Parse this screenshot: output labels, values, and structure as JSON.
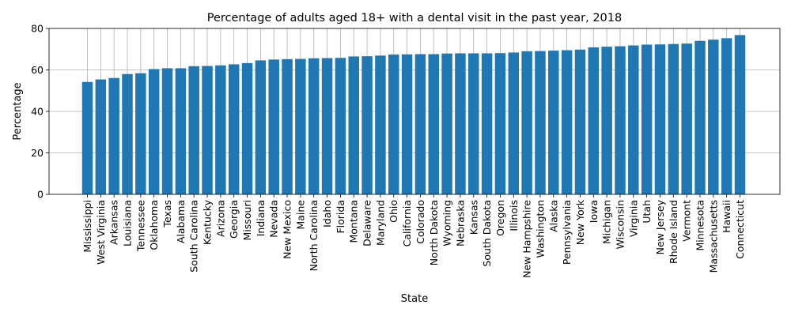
{
  "chart_data": {
    "type": "bar",
    "title": "Percentage of adults aged 18+ with a dental visit in the past year, 2018",
    "xlabel": "State",
    "ylabel": "Percentage",
    "ylim": [
      0,
      80
    ],
    "yticks": [
      0,
      20,
      40,
      60,
      80
    ],
    "grid": true,
    "bar_color": "#1f77b4",
    "categories": [
      "Mississippi",
      "West Virginia",
      "Arkansas",
      "Louisiana",
      "Tennessee",
      "Oklahoma",
      "Texas",
      "Alabama",
      "South Carolina",
      "Kentucky",
      "Arizona",
      "Georgia",
      "Missouri",
      "Indiana",
      "Nevada",
      "New Mexico",
      "Maine",
      "North Carolina",
      "Idaho",
      "Florida",
      "Montana",
      "Delaware",
      "Maryland",
      "Ohio",
      "California",
      "Colorado",
      "North Dakota",
      "Wyoming",
      "Nebraska",
      "Kansas",
      "South Dakota",
      "Oregon",
      "Illinois",
      "New Hampshire",
      "Washington",
      "Alaska",
      "Pennsylvania",
      "New York",
      "Iowa",
      "Michigan",
      "Wisconsin",
      "Virginia",
      "Utah",
      "New Jersey",
      "Rhode Island",
      "Vermont",
      "Minnesota",
      "Massachusetts",
      "Hawaii",
      "Connecticut"
    ],
    "values": [
      54.2,
      55.4,
      56.1,
      58.0,
      58.4,
      60.4,
      60.8,
      60.8,
      61.8,
      61.9,
      62.2,
      62.7,
      63.3,
      64.6,
      65.0,
      65.2,
      65.3,
      65.6,
      65.7,
      65.8,
      66.5,
      66.6,
      66.9,
      67.4,
      67.5,
      67.6,
      67.6,
      67.9,
      68.0,
      68.0,
      68.0,
      68.1,
      68.4,
      69.0,
      69.1,
      69.3,
      69.5,
      69.8,
      70.9,
      71.2,
      71.4,
      71.8,
      72.2,
      72.3,
      72.5,
      72.7,
      74.0,
      74.6,
      75.3,
      76.8
    ]
  }
}
